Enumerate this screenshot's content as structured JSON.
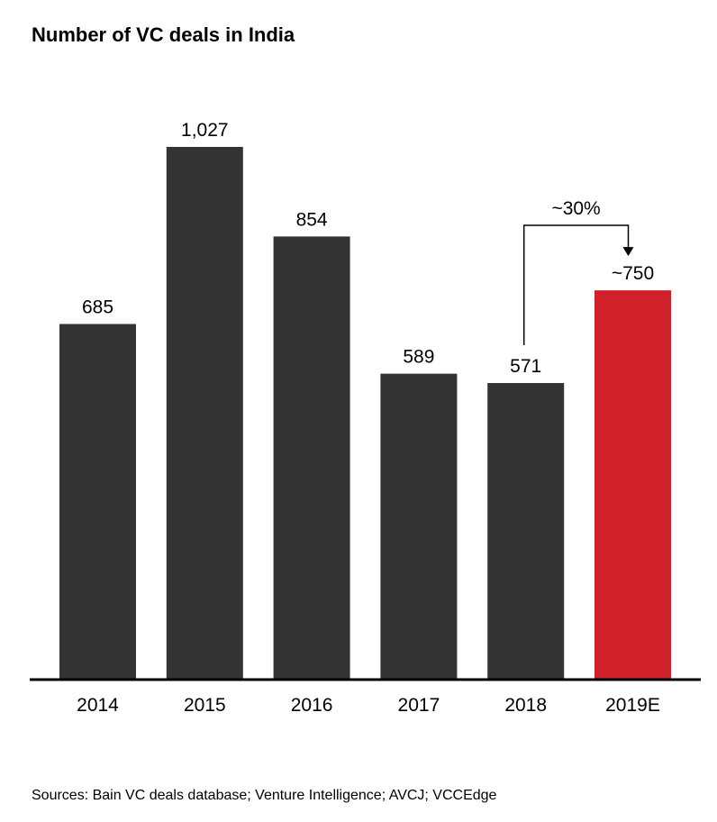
{
  "title": "Number of VC deals in India",
  "source": "Sources: Bain VC deals database; Venture Intelligence; AVCJ; VCCEdge",
  "chart_data": {
    "type": "bar",
    "title": "Number of VC deals in India",
    "categories": [
      "2014",
      "2015",
      "2016",
      "2017",
      "2018",
      "2019E"
    ],
    "values": [
      685,
      1027,
      854,
      589,
      571,
      750
    ],
    "data_labels": [
      "685",
      "1,027",
      "854",
      "589",
      "571",
      "~750"
    ],
    "xlabel": "",
    "ylabel": "",
    "ylim": [
      0,
      1027
    ],
    "grid": false,
    "colors": {
      "default": "#333333",
      "highlight": "#d0202a",
      "highlight_category": "2019E"
    },
    "annotation": {
      "text": "~30%",
      "from_category": "2018",
      "to_category": "2019E"
    }
  }
}
